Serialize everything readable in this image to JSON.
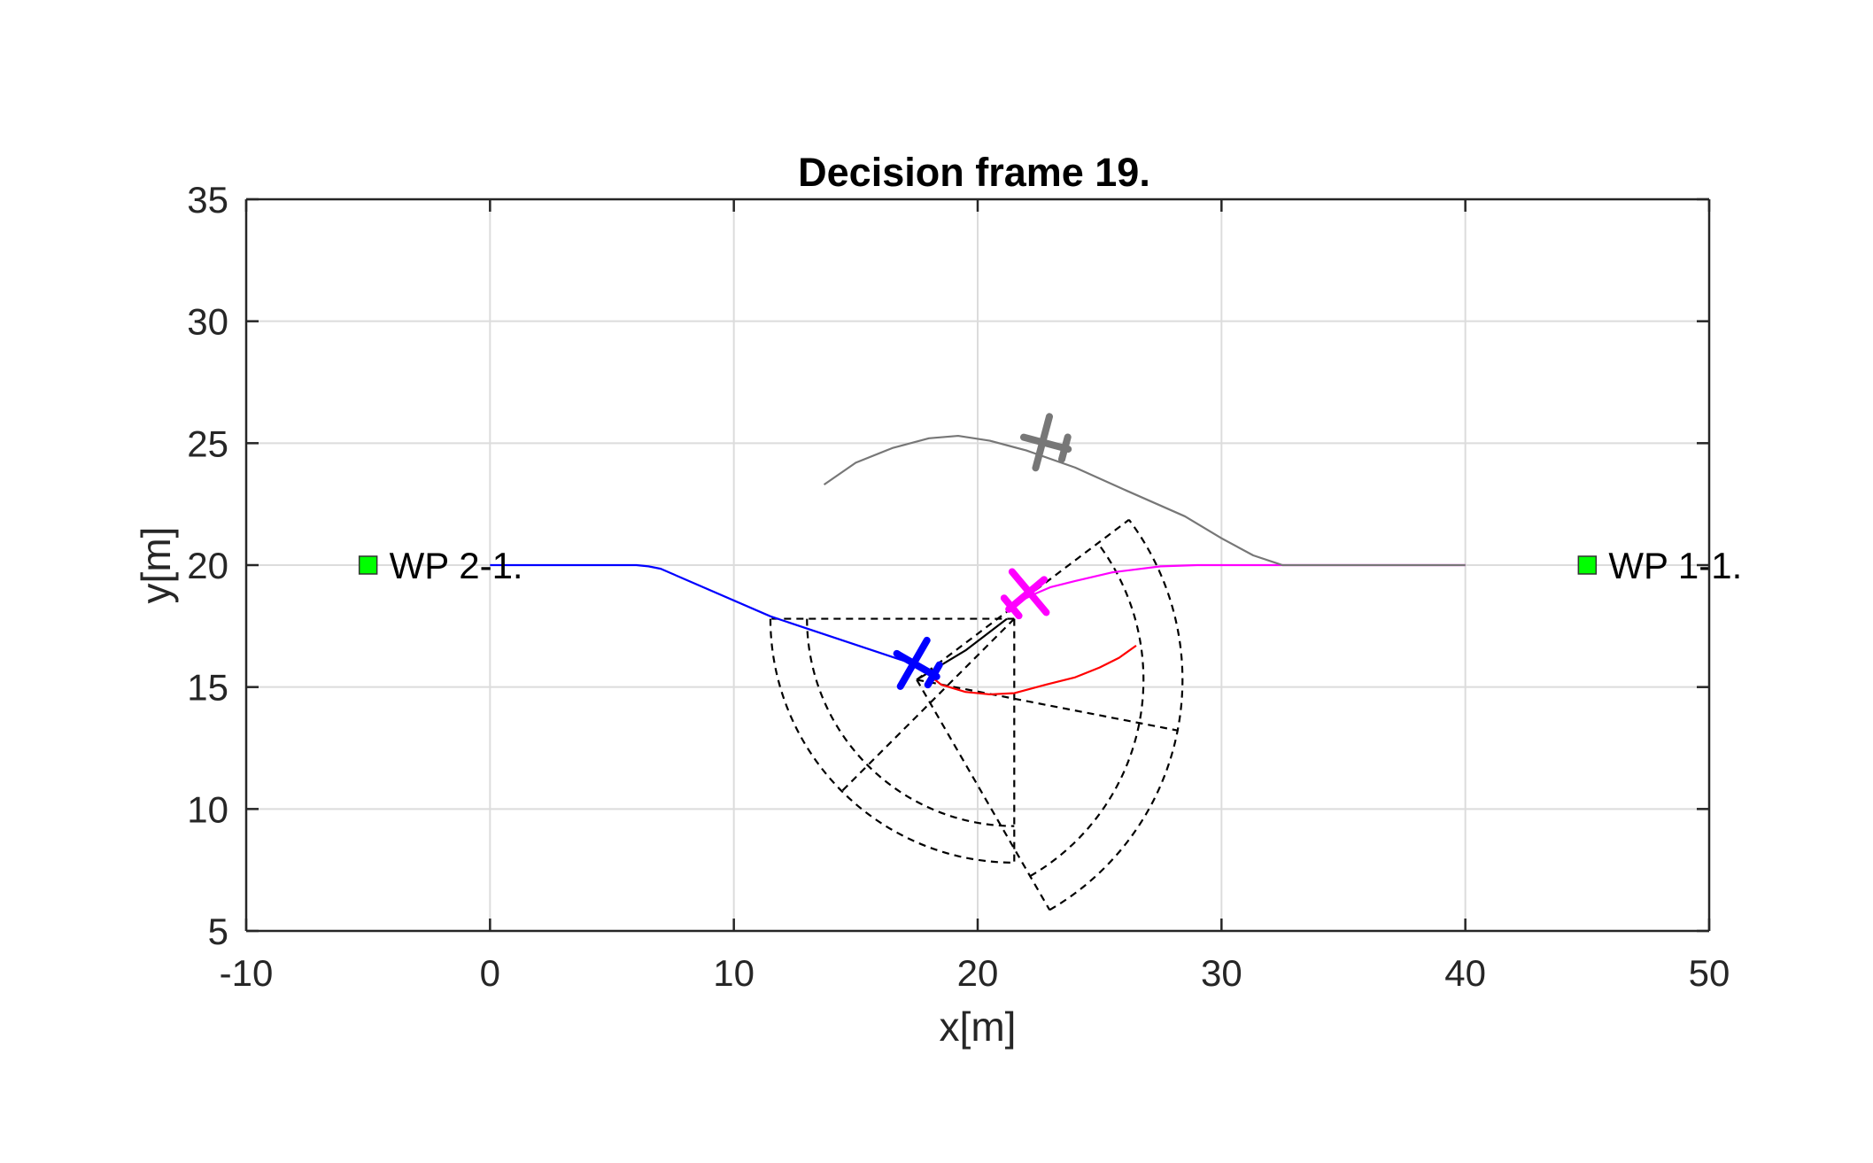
{
  "chart_data": {
    "type": "line",
    "title": "Decision frame 19.",
    "xlabel": "x[m]",
    "ylabel": "y[m]",
    "xlim": [
      -10,
      50
    ],
    "ylim": [
      5,
      35
    ],
    "xticks": [
      -10,
      0,
      10,
      20,
      30,
      40,
      50
    ],
    "yticks": [
      5,
      10,
      15,
      20,
      25,
      30,
      35
    ],
    "xtick_labels": [
      "-10",
      "0",
      "10",
      "20",
      "30",
      "40",
      "50"
    ],
    "ytick_labels": [
      "5",
      "10",
      "15",
      "20",
      "25",
      "30",
      "35"
    ],
    "grid": true,
    "series": [
      {
        "color": "#0000ff",
        "x": [
          0,
          6,
          6.5,
          7,
          11.5,
          17.5
        ],
        "y": [
          20,
          20,
          19.95,
          19.85,
          17.9,
          15.9
        ]
      },
      {
        "color": "#ff00ff",
        "x": [
          21.5,
          22.3,
          23,
          24,
          25.5,
          27.5,
          29,
          40
        ],
        "y": [
          18.4,
          18.8,
          19.1,
          19.35,
          19.7,
          19.95,
          20,
          20
        ]
      },
      {
        "color": "#777777",
        "x": [
          13.7,
          15,
          16.5,
          18,
          19.2,
          20.5,
          22,
          24,
          26,
          28.5,
          30,
          31.3,
          32.5,
          40
        ],
        "y": [
          23.3,
          24.2,
          24.8,
          25.2,
          25.3,
          25.1,
          24.7,
          24,
          23.1,
          22,
          21.1,
          20.4,
          20,
          20
        ]
      },
      {
        "color": "#ff0000",
        "x": [
          17.5,
          18.5,
          19.5,
          20.5,
          21.5,
          22.8,
          24,
          25,
          25.8,
          26.5
        ],
        "y": [
          15.9,
          15.1,
          14.8,
          14.7,
          14.75,
          15.1,
          15.4,
          15.8,
          16.2,
          16.7
        ]
      },
      {
        "color": "#000000",
        "x": [
          17.5,
          19.5,
          21.2
        ],
        "y": [
          15.3,
          16.5,
          17.8
        ]
      }
    ],
    "sensor_regions": [
      {
        "center": [
          21.5,
          17.8
        ],
        "r_inner": 8.5,
        "r_outer": 10,
        "angle_start_deg": 180,
        "angle_end_deg": 270,
        "divider_deg": 225
      },
      {
        "center": [
          17.5,
          15.3
        ],
        "r_inner": 9.3,
        "r_outer": 10.9,
        "angle_start_deg": -60,
        "angle_end_deg": 37,
        "divider_deg": -11
      }
    ],
    "aircraft": [
      {
        "name": "blue",
        "color": "#0000ff",
        "x": 17.5,
        "y": 15.9,
        "heading_deg": 150
      },
      {
        "name": "magenta",
        "color": "#ff00ff",
        "x": 22,
        "y": 18.8,
        "heading_deg": 40
      },
      {
        "name": "gray",
        "color": "#777777",
        "x": 22.8,
        "y": 25,
        "heading_deg": 165
      }
    ],
    "waypoints": [
      {
        "label": "WP 2-1.",
        "x": -5,
        "y": 20,
        "color": "#00ff00"
      },
      {
        "label": "WP 1-1.",
        "x": 45,
        "y": 20,
        "color": "#00ff00"
      }
    ]
  }
}
